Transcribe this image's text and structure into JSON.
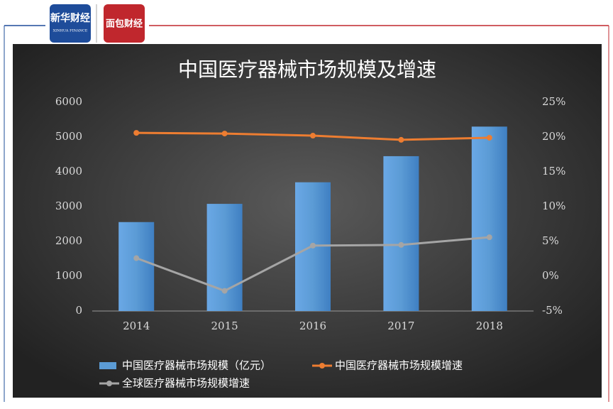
{
  "header": {
    "logo_left": "新华财经",
    "logo_left_sub": "XINHUA FINANCE",
    "logo_right": "面包财经"
  },
  "chart_data": {
    "type": "bar",
    "title": "中国医疗器械市场规模及增速",
    "categories": [
      "2014",
      "2015",
      "2016",
      "2017",
      "2018"
    ],
    "series": [
      {
        "name": "中国医疗器械市场规模（亿元）",
        "color": "#5b9bd5",
        "values": [
          2556,
          3080,
          3700,
          4450,
          5300
        ]
      },
      {
        "name": "中国医疗器械市场规模增速",
        "color": "#ed7d31",
        "type": "line",
        "axis": "y2",
        "values": [
          20.6,
          20.5,
          20.2,
          19.6,
          19.9
        ]
      },
      {
        "name": "全球医疗器械市场规模增速",
        "color": "#a5a5a5",
        "type": "line",
        "axis": "y2",
        "values": [
          2.6,
          -2.1,
          4.4,
          4.5,
          5.6
        ]
      }
    ],
    "ylim": [
      0,
      6000
    ],
    "yticks": [
      0,
      1000,
      2000,
      3000,
      4000,
      5000,
      6000
    ],
    "y2lim": [
      -5,
      25
    ],
    "y2ticks": [
      {
        "value": -5,
        "label": "-5%"
      },
      {
        "value": 0,
        "label": "0%"
      },
      {
        "value": 5,
        "label": "5%"
      },
      {
        "value": 10,
        "label": "10%"
      },
      {
        "value": 15,
        "label": "15%"
      },
      {
        "value": 20,
        "label": "20%"
      },
      {
        "value": 25,
        "label": "25%"
      }
    ]
  }
}
